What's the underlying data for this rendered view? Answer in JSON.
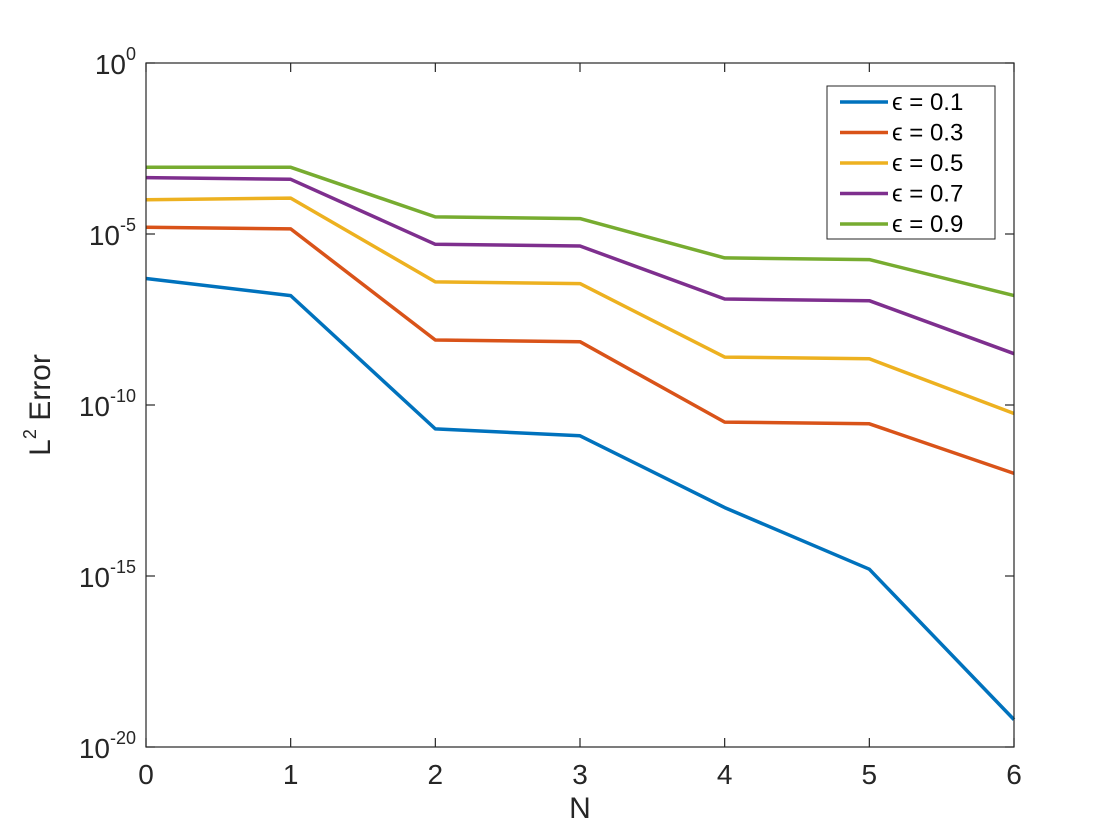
{
  "chart_data": {
    "type": "line",
    "xlabel": "N",
    "ylabel_base": "L",
    "ylabel_sup": "2",
    "ylabel_rest": " Error",
    "yscale": "log",
    "xlim": [
      0,
      6
    ],
    "ylim_exp": [
      -20,
      0
    ],
    "x": [
      0,
      1,
      2,
      3,
      4,
      5,
      6
    ],
    "xticks": [
      "0",
      "1",
      "2",
      "3",
      "4",
      "5",
      "6"
    ],
    "yticks": [
      {
        "exp": 0,
        "base": "10",
        "sup": "0"
      },
      {
        "exp": -5,
        "base": "10",
        "sup": "-5"
      },
      {
        "exp": -10,
        "base": "10",
        "sup": "-10"
      },
      {
        "exp": -15,
        "base": "10",
        "sup": "-15"
      },
      {
        "exp": -20,
        "base": "10",
        "sup": "-20"
      }
    ],
    "legend_position": "top-right",
    "grid": false,
    "series": [
      {
        "name": "ϵ = 0.1",
        "color": "#0072BD",
        "log10_values": [
          -6.3,
          -6.8,
          -10.7,
          -10.9,
          -13.0,
          -14.8,
          -19.2
        ]
      },
      {
        "name": "ϵ = 0.3",
        "color": "#D95319",
        "log10_values": [
          -4.8,
          -4.85,
          -8.1,
          -8.15,
          -10.5,
          -10.55,
          -12.0
        ]
      },
      {
        "name": "ϵ = 0.5",
        "color": "#EDB120",
        "log10_values": [
          -4.0,
          -3.95,
          -6.4,
          -6.45,
          -8.6,
          -8.65,
          -10.25
        ]
      },
      {
        "name": "ϵ = 0.7",
        "color": "#7E2F8E",
        "log10_values": [
          -3.35,
          -3.4,
          -5.3,
          -5.35,
          -6.9,
          -6.95,
          -8.5
        ]
      },
      {
        "name": "ϵ = 0.9",
        "color": "#77AC30",
        "log10_values": [
          -3.05,
          -3.05,
          -4.5,
          -4.55,
          -5.7,
          -5.75,
          -6.8
        ]
      }
    ]
  }
}
